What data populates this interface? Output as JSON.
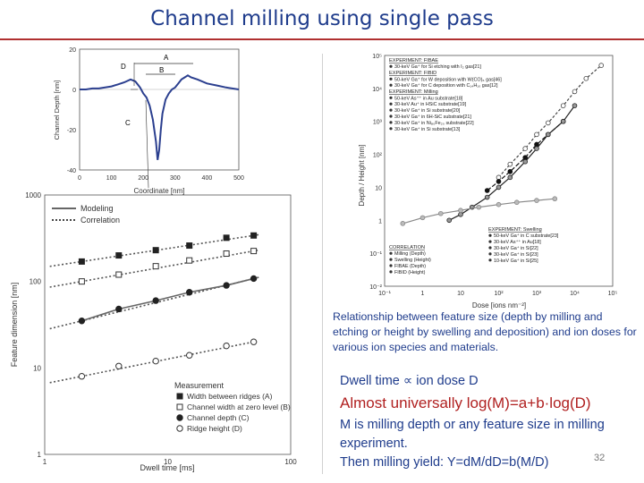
{
  "slide": {
    "title": "Channel milling using single pass",
    "caption": "Relationship between feature size (depth by milling and etching or height by swelling and deposition) and ion doses for various ion species and materials.",
    "line1": "Dwell time ∝ ion dose D",
    "line2": "Almost universally log(M)=a+b·log(D)",
    "line3": "M is milling depth or any feature size in milling experiment.",
    "line4": "Then milling yield: Y=dM/dD=b(M/D)",
    "page": "32"
  },
  "chart_data": [
    {
      "type": "line",
      "xlabel": "Coordinate [nm]",
      "ylabel": "Channel Depth [nm]",
      "xlim": [
        0,
        500
      ],
      "ylim": [
        -40,
        20
      ],
      "xticks": [
        "0",
        "100",
        "200",
        "300",
        "400",
        "500"
      ],
      "yticks": [
        "20",
        "0",
        "-20",
        "-40"
      ],
      "annotations": [
        "A",
        "B",
        "C",
        "D"
      ],
      "series": [
        {
          "x": [
            0,
            20,
            40,
            60,
            80,
            100,
            120,
            140,
            160,
            175,
            190,
            200,
            210,
            220,
            230,
            240,
            245,
            250,
            255,
            260,
            270,
            280,
            290,
            300,
            310,
            320,
            330,
            340,
            350,
            370,
            400,
            430,
            460,
            500
          ],
          "y": [
            0,
            0,
            0.5,
            0.5,
            1,
            1.5,
            2.5,
            3.5,
            5,
            4,
            1,
            -2,
            -4,
            -8,
            -15,
            -26,
            -35,
            -30,
            -20,
            -12,
            -5,
            -2,
            0,
            1,
            3,
            5,
            6,
            7,
            6,
            5,
            3,
            2,
            1,
            0
          ]
        }
      ]
    },
    {
      "type": "line",
      "xlabel": "Dwell time [ms]",
      "ylabel": "Feature dimension [nm]",
      "xscale": "log",
      "yscale": "log",
      "xlim": [
        1,
        100
      ],
      "ylim": [
        1,
        1000
      ],
      "xticks": [
        "1",
        "10",
        "100"
      ],
      "yticks": [
        "1",
        "10",
        "100",
        "1000"
      ],
      "legend_lines": [
        "Modeling",
        "Correlation"
      ],
      "legend_title": "Measurement",
      "series": [
        {
          "name": "Width between ridges (A)",
          "x": [
            2,
            4,
            8,
            15,
            30,
            50
          ],
          "y": [
            170,
            200,
            230,
            260,
            320,
            340
          ]
        },
        {
          "name": "Channel width at zero level (B)",
          "x": [
            2,
            4,
            8,
            15,
            30,
            50
          ],
          "y": [
            100,
            120,
            150,
            175,
            210,
            225
          ]
        },
        {
          "name": "Channel depth (C)",
          "x": [
            2,
            4,
            8,
            15,
            30,
            50
          ],
          "y": [
            35,
            48,
            60,
            75,
            90,
            108
          ]
        },
        {
          "name": "Ridge height (D)",
          "x": [
            2,
            4,
            8,
            15,
            30,
            50
          ],
          "y": [
            8,
            10.5,
            12,
            14,
            18,
            20
          ]
        }
      ]
    },
    {
      "type": "scatter",
      "xlabel": "Dose [ions nm⁻²]",
      "ylabel": "Depth / Height [nm]",
      "xscale": "log",
      "yscale": "log",
      "xlim": [
        0.1,
        100000
      ],
      "ylim": [
        0.01,
        100000
      ],
      "xticks": [
        "10⁻¹",
        "1",
        "10",
        "10²",
        "10³",
        "10⁴",
        "10⁵"
      ],
      "yticks": [
        "10⁻²",
        "10⁻¹",
        "1",
        "10",
        "10²",
        "10³",
        "10⁴",
        "10⁵"
      ],
      "legend_groups": [
        {
          "header": "EXPERIMENT: FIBAE",
          "items": [
            "30-keV Ga⁺ for Si etching with I₂ gas[21]"
          ]
        },
        {
          "header": "EXPERIMENT: FIBID",
          "items": [
            "50-keV Ga⁺ for W deposition with W(CO)₆ gas[46]",
            "30-keV Ga⁺ for C deposition with C₁₄H₁₀ gas[12]"
          ]
        },
        {
          "header": "EXPERIMENT: Milling",
          "items": [
            "50-keV As⁺⁺ in Au substrate[18]",
            "30-keV Au⁺ in HSiC substrate[19]",
            "30-keV Ga⁺ in Si substrate[20]",
            "30-keV Ga⁺ in 6H-SiC substrate[21]",
            "30-keV Ga⁺ in Ni₈₀Fe₂₀ substrate[22]",
            "30-keV Ga⁺ in Si substrate[13]"
          ]
        },
        {
          "header": "EXPERIMENT: Swelling",
          "items": [
            "50-keV Ga⁺ in C substrate[23]",
            "30-keV As⁺⁺ in Au[18]",
            "30-keV Ga⁺ in Si[22]",
            "30-keV Ga⁺ in Si[23]",
            "10-keV Ga⁺ in Si[25]"
          ]
        },
        {
          "header": "CORRELATION",
          "items": [
            "Milling (Depth)",
            "Swelling (Height)",
            "FIBAE (Depth)",
            "FIBID (Height)"
          ]
        }
      ],
      "series": [
        {
          "name": "FIBAE",
          "x": [
            100,
            200,
            500,
            1000,
            2000,
            5000,
            10000,
            20000,
            50000
          ],
          "y": [
            20,
            50,
            150,
            400,
            900,
            3000,
            8000,
            20000,
            50000
          ]
        },
        {
          "name": "FIBID",
          "x": [
            50,
            100,
            200,
            500,
            1000,
            2000,
            5000
          ],
          "y": [
            8,
            15,
            30,
            80,
            200,
            400,
            1000
          ]
        },
        {
          "name": "Milling",
          "x": [
            5,
            10,
            20,
            50,
            100,
            200,
            500,
            1000,
            2000,
            5000,
            10000
          ],
          "y": [
            1,
            1.5,
            2.5,
            5,
            10,
            20,
            60,
            150,
            400,
            1000,
            3000
          ]
        },
        {
          "name": "Swelling",
          "x": [
            0.3,
            1,
            3,
            10,
            30,
            100,
            300,
            1000,
            3000
          ],
          "y": [
            0.8,
            1.2,
            1.6,
            2,
            2.5,
            3,
            3.5,
            4,
            4.5
          ]
        }
      ]
    }
  ]
}
